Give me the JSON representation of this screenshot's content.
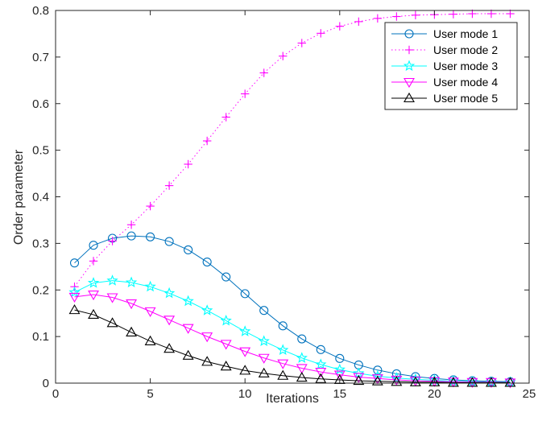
{
  "chart_data": {
    "type": "line",
    "title": "",
    "xlabel": "Iterations",
    "ylabel": "Order parameter",
    "xlim": [
      0,
      25
    ],
    "ylim": [
      0,
      0.8
    ],
    "xticks": [
      0,
      5,
      10,
      15,
      20,
      25
    ],
    "yticks": [
      0,
      0.1,
      0.2,
      0.3,
      0.4,
      0.5,
      0.6,
      0.7,
      0.8
    ],
    "xtick_labels": [
      "0",
      "5",
      "10",
      "15",
      "20",
      "25"
    ],
    "ytick_labels": [
      "0",
      "0.1",
      "0.2",
      "0.3",
      "0.4",
      "0.5",
      "0.6",
      "0.7",
      "0.8"
    ],
    "grid": false,
    "legend_position": "top-right",
    "x": [
      1,
      2,
      3,
      4,
      5,
      6,
      7,
      8,
      9,
      10,
      11,
      12,
      13,
      14,
      15,
      16,
      17,
      18,
      19,
      20,
      21,
      22,
      23,
      24
    ],
    "series": [
      {
        "name": "User mode 1",
        "color": "#0072BD",
        "line_style": "solid",
        "marker": "circle",
        "values": [
          0.258,
          0.296,
          0.311,
          0.316,
          0.314,
          0.304,
          0.286,
          0.26,
          0.228,
          0.192,
          0.156,
          0.123,
          0.095,
          0.072,
          0.053,
          0.039,
          0.028,
          0.02,
          0.014,
          0.01,
          0.007,
          0.005,
          0.004,
          0.003
        ]
      },
      {
        "name": "User mode 2",
        "color": "#FF00FF",
        "line_style": "dotted",
        "marker": "plus",
        "values": [
          0.207,
          0.262,
          0.305,
          0.34,
          0.38,
          0.424,
          0.47,
          0.52,
          0.571,
          0.621,
          0.666,
          0.702,
          0.73,
          0.751,
          0.766,
          0.776,
          0.783,
          0.787,
          0.79,
          0.791,
          0.792,
          0.793,
          0.793,
          0.793
        ]
      },
      {
        "name": "User mode 3",
        "color": "#00FFFF",
        "line_style": "solid",
        "marker": "star",
        "values": [
          0.195,
          0.215,
          0.22,
          0.216,
          0.207,
          0.193,
          0.176,
          0.156,
          0.134,
          0.111,
          0.09,
          0.071,
          0.054,
          0.04,
          0.029,
          0.021,
          0.015,
          0.011,
          0.008,
          0.006,
          0.004,
          0.003,
          0.002,
          0.002
        ]
      },
      {
        "name": "User mode 4",
        "color": "#FF00FF",
        "line_style": "solid",
        "marker": "triangle-down",
        "values": [
          0.185,
          0.19,
          0.184,
          0.171,
          0.154,
          0.136,
          0.118,
          0.1,
          0.084,
          0.068,
          0.054,
          0.042,
          0.032,
          0.024,
          0.018,
          0.013,
          0.01,
          0.007,
          0.005,
          0.004,
          0.003,
          0.002,
          0.002,
          0.001
        ]
      },
      {
        "name": "User mode 5",
        "color": "#000000",
        "line_style": "solid",
        "marker": "triangle-up",
        "values": [
          0.157,
          0.147,
          0.129,
          0.109,
          0.09,
          0.074,
          0.059,
          0.046,
          0.036,
          0.027,
          0.021,
          0.016,
          0.012,
          0.009,
          0.007,
          0.005,
          0.004,
          0.003,
          0.002,
          0.002,
          0.001,
          0.001,
          0.001,
          0.001
        ]
      }
    ]
  }
}
